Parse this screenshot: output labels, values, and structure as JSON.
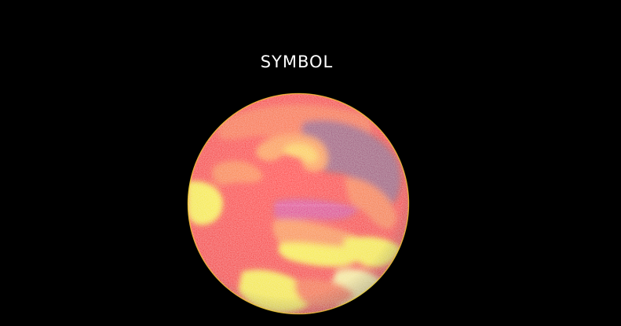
{
  "title": "SYMBOL",
  "planet": {
    "icon": "swirling-planet-sphere",
    "colors": {
      "base": "#ff1410",
      "yellow": "#fff21a",
      "orange": "#ff8a1e",
      "magenta": "#e0208e",
      "purple": "#a04a78",
      "rim": "#f0d020"
    }
  }
}
